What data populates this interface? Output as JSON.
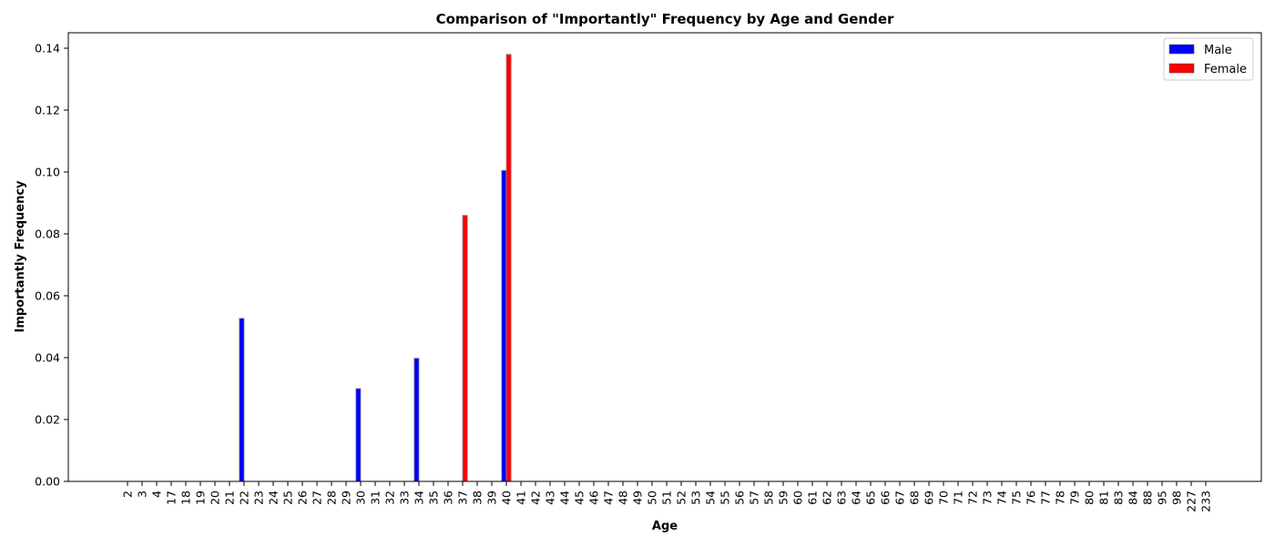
{
  "chart_data": {
    "type": "bar",
    "title": "Comparison of \"Importantly\" Frequency by Age and Gender",
    "xlabel": "Age",
    "ylabel": "Importantly Frequency",
    "ylim": [
      0,
      0.145
    ],
    "yticks": [
      "0.00",
      "0.02",
      "0.04",
      "0.06",
      "0.08",
      "0.10",
      "0.12",
      "0.14"
    ],
    "categories": [
      "2",
      "3",
      "4",
      "17",
      "18",
      "19",
      "20",
      "21",
      "22",
      "23",
      "24",
      "25",
      "26",
      "27",
      "28",
      "29",
      "30",
      "31",
      "32",
      "33",
      "34",
      "35",
      "36",
      "37",
      "38",
      "39",
      "40",
      "41",
      "42",
      "43",
      "44",
      "45",
      "46",
      "47",
      "48",
      "49",
      "50",
      "51",
      "52",
      "53",
      "54",
      "55",
      "56",
      "57",
      "58",
      "59",
      "60",
      "61",
      "62",
      "63",
      "64",
      "65",
      "66",
      "67",
      "68",
      "69",
      "70",
      "71",
      "72",
      "73",
      "74",
      "75",
      "76",
      "77",
      "78",
      "79",
      "80",
      "81",
      "83",
      "84",
      "88",
      "95",
      "98",
      "227",
      "233"
    ],
    "series": [
      {
        "name": "Male",
        "color": "#0000ff",
        "values": [
          0,
          0,
          0,
          0,
          0,
          0,
          0,
          0,
          0.0527,
          0,
          0,
          0,
          0,
          0,
          0,
          0,
          0.03,
          0,
          0,
          0,
          0.0398,
          0,
          0,
          0,
          0,
          0,
          0.1005,
          0,
          0,
          0,
          0,
          0,
          0,
          0,
          0,
          0,
          0,
          0,
          0,
          0,
          0,
          0,
          0,
          0,
          0,
          0,
          0,
          0,
          0,
          0,
          0,
          0,
          0,
          0,
          0,
          0,
          0,
          0,
          0,
          0,
          0,
          0,
          0,
          0,
          0,
          0,
          0,
          0,
          0,
          0,
          0,
          0,
          0,
          0,
          0
        ]
      },
      {
        "name": "Female",
        "color": "#ff0000",
        "values": [
          0,
          0,
          0,
          0,
          0,
          0,
          0,
          0,
          0,
          0,
          0,
          0,
          0,
          0,
          0,
          0,
          0,
          0,
          0,
          0,
          0,
          0,
          0,
          0.086,
          0,
          0,
          0.138,
          0,
          0,
          0,
          0,
          0,
          0,
          0,
          0,
          0,
          0,
          0,
          0,
          0,
          0,
          0,
          0,
          0,
          0,
          0,
          0,
          0,
          0,
          0,
          0,
          0,
          0,
          0,
          0,
          0,
          0,
          0,
          0,
          0,
          0,
          0,
          0,
          0,
          0,
          0,
          0,
          0,
          0,
          0,
          0,
          0,
          0,
          0,
          0
        ]
      }
    ],
    "legend": "top-right",
    "grid": false
  }
}
